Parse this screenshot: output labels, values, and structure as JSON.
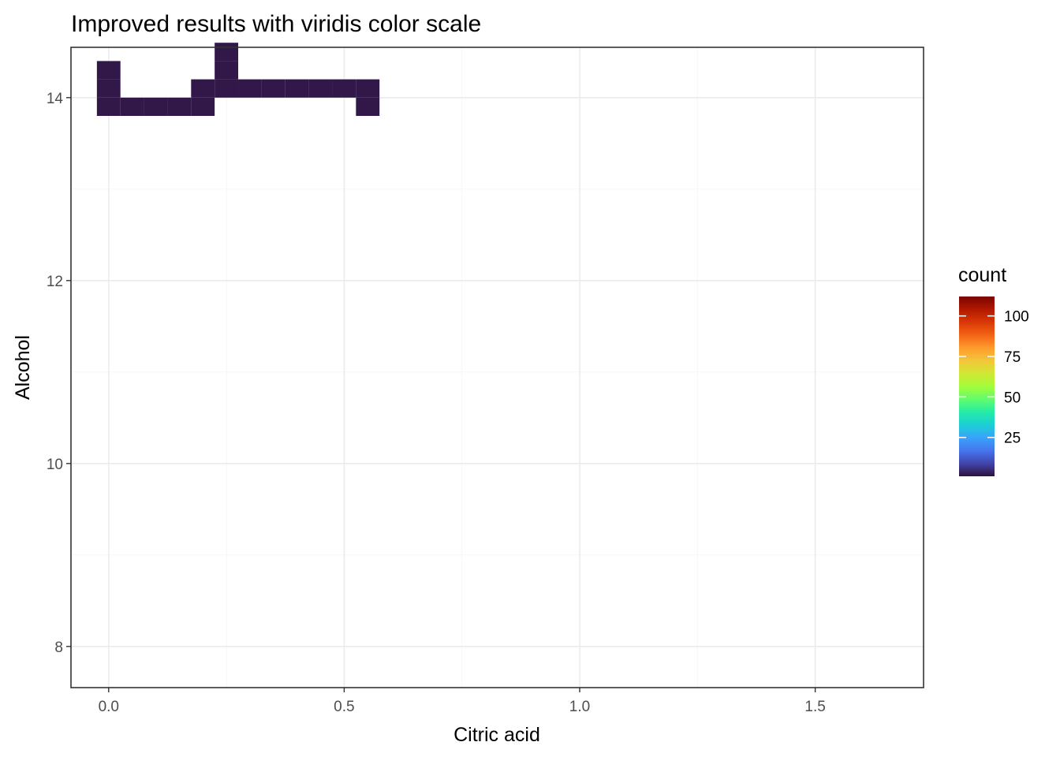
{
  "chart_data": {
    "type": "heatmap",
    "title": "Improved results with viridis color scale",
    "xlabel": "Citric acid",
    "ylabel": "Alcohol",
    "xlim": [
      -0.08,
      1.73
    ],
    "ylim": [
      7.55,
      14.55
    ],
    "x_ticks": [
      0,
      0.5,
      1,
      1.5
    ],
    "x_tick_labels": [
      "0.0",
      "0.5",
      "1.0",
      "1.5"
    ],
    "y_ticks": [
      8,
      10,
      12,
      14
    ],
    "y_tick_labels": [
      "8",
      "10",
      "12",
      "14"
    ],
    "grid": true,
    "bin_width_x": 0.05,
    "bin_width_y": 0.2,
    "x_bin_origin": 0,
    "y_bin_origin": 7.9,
    "legend": {
      "title": "count",
      "position": "right",
      "range": [
        1,
        112
      ],
      "breaks": [
        25,
        50,
        75,
        100
      ],
      "break_labels": [
        "25",
        "50",
        "75",
        "100"
      ],
      "palette": [
        "#30123b",
        "#4145ab",
        "#4675ed",
        "#39a2fc",
        "#1bcfd4",
        "#24eca6",
        "#61fc6c",
        "#a4fc3b",
        "#d1e834",
        "#f3c63a",
        "#fe9b2d",
        "#f36315",
        "#d93806",
        "#b11901",
        "#7a0402"
      ]
    },
    "cells": [
      [
        0,
        "14.2",
        2
      ],
      [
        0,
        "14.0",
        2
      ],
      [
        0,
        "13.8",
        2
      ],
      [
        1,
        "13.8",
        2
      ],
      [
        2,
        "13.8",
        2
      ],
      [
        3,
        "13.8",
        2
      ],
      [
        4,
        "13.8",
        2
      ],
      [
        4,
        "14.0",
        2
      ],
      [
        5,
        "14.0",
        2
      ],
      [
        5,
        "14.2",
        2
      ],
      [
        5,
        "14.4",
        2
      ],
      [
        6,
        "14.0",
        2
      ],
      [
        7,
        "14.0",
        2
      ],
      [
        8,
        "14.0",
        2
      ],
      [
        9,
        "14.0",
        2
      ],
      [
        10,
        "14.0",
        2
      ],
      [
        11,
        "14.0",
        2
      ],
      [
        11,
        "13.8",
        2
      ]
    ]
  }
}
